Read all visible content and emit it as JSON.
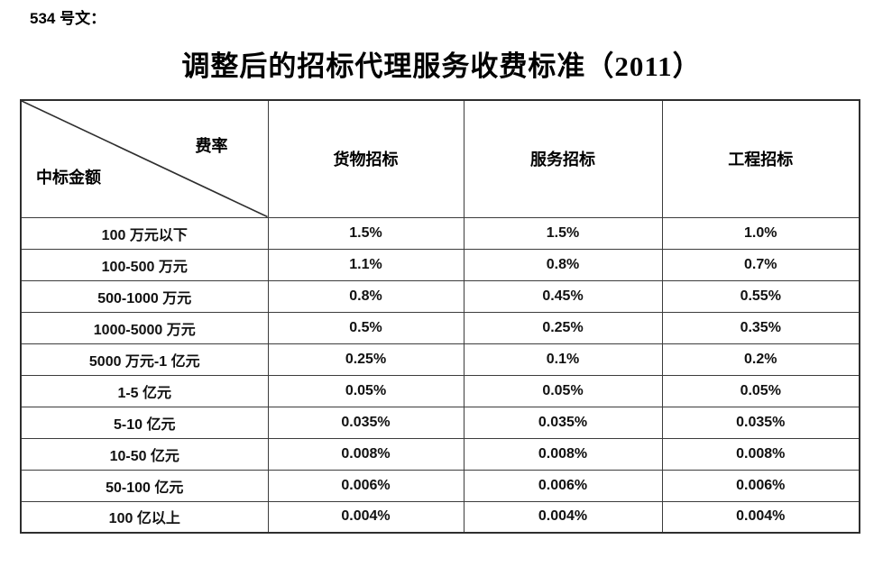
{
  "page": {
    "doc_label": "534 号文：",
    "title": "调整后的招标代理服务收费标准（2011）"
  },
  "table": {
    "corner": {
      "top_right": "费率",
      "bottom_left": "中标金额"
    },
    "columns": [
      "货物招标",
      "服务招标",
      "工程招标"
    ],
    "rows": [
      {
        "amount": "100 万元以下",
        "values": [
          "1.5%",
          "1.5%",
          "1.0%"
        ]
      },
      {
        "amount": "100-500 万元",
        "values": [
          "1.1%",
          "0.8%",
          "0.7%"
        ]
      },
      {
        "amount": "500-1000 万元",
        "values": [
          "0.8%",
          "0.45%",
          "0.55%"
        ]
      },
      {
        "amount": "1000-5000 万元",
        "values": [
          "0.5%",
          "0.25%",
          "0.35%"
        ]
      },
      {
        "amount": "5000 万元-1 亿元",
        "values": [
          "0.25%",
          "0.1%",
          "0.2%"
        ]
      },
      {
        "amount": "1-5 亿元",
        "values": [
          "0.05%",
          "0.05%",
          "0.05%"
        ]
      },
      {
        "amount": "5-10 亿元",
        "values": [
          "0.035%",
          "0.035%",
          "0.035%"
        ]
      },
      {
        "amount": "10-50 亿元",
        "values": [
          "0.008%",
          "0.008%",
          "0.008%"
        ]
      },
      {
        "amount": "50-100 亿元",
        "values": [
          "0.006%",
          "0.006%",
          "0.006%"
        ]
      },
      {
        "amount": "100 亿以上",
        "values": [
          "0.004%",
          "0.004%",
          "0.004%"
        ]
      }
    ],
    "colors": {
      "border": "#2e2e2e",
      "text": "#111111",
      "background": "#ffffff"
    }
  }
}
